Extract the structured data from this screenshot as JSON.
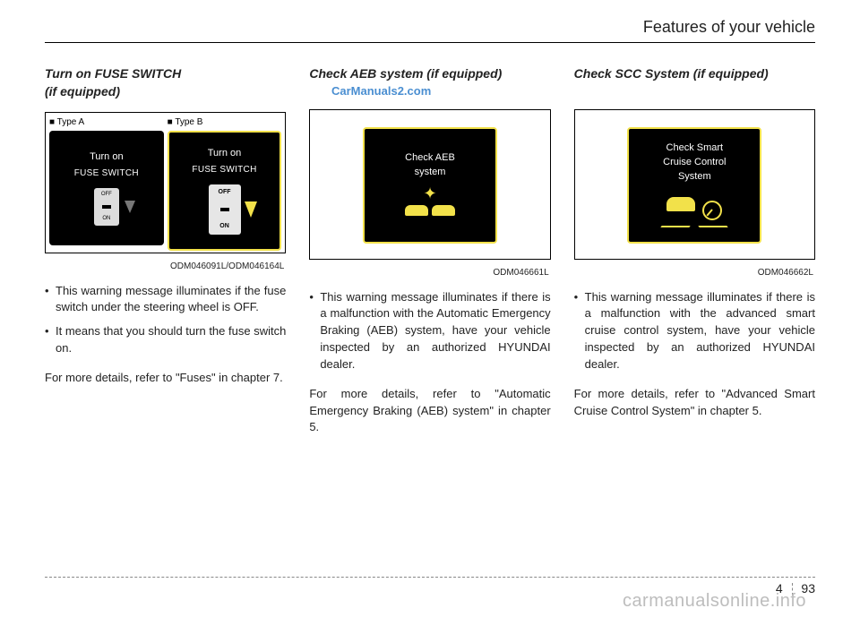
{
  "header": {
    "title": "Features of your vehicle"
  },
  "watermark": {
    "link": "CarManuals2.com",
    "footer": "carmanualsonline.info"
  },
  "col1": {
    "title_l1": "Turn on FUSE SWITCH",
    "title_l2": "(if equipped)",
    "type_a": "Type A",
    "type_b": "Type B",
    "screen_a_l1": "Turn on",
    "screen_a_l2": "FUSE SWITCH",
    "switch_a_off": "OFF",
    "switch_a_on": "ON",
    "screen_b_l1": "Turn on",
    "screen_b_l2": "FUSE SWITCH",
    "switch_b_off": "OFF",
    "switch_b_on": "ON",
    "code": "ODM046091L/ODM046164L",
    "bullets": [
      "This warning message illuminates if the fuse switch under the steering wheel is OFF.",
      "It means that you should turn the fuse switch on."
    ],
    "para": "For more details, refer to \"Fuses\" in chapter 7."
  },
  "col2": {
    "title": "Check AEB system (if equipped)",
    "screen_l1": "Check AEB",
    "screen_l2": "system",
    "code": "ODM046661L",
    "bullets": [
      "This warning message illuminates if there is a malfunction with the Automatic Emergency Braking (AEB) system, have your vehicle inspected by an authorized HYUNDAI dealer."
    ],
    "para": "For more details, refer to \"Automatic Emergency Braking (AEB) system\" in chapter 5."
  },
  "col3": {
    "title": "Check SCC System (if equipped)",
    "screen_l1": "Check Smart",
    "screen_l2": "Cruise Control",
    "screen_l3": "System",
    "code": "ODM046662L",
    "bullets": [
      "This warning message illuminates if there is a malfunction with the advanced smart cruise control system, have your vehicle inspected by an authorized HYUNDAI dealer."
    ],
    "para": "For more details, refer to \"Advanced Smart Cruise Control System\" in chapter 5."
  },
  "footer": {
    "chap": "4",
    "page": "93"
  },
  "colors": {
    "accent": "#f2e14a",
    "screen_bg": "#000000",
    "link": "#2b7bc9",
    "wm": "#bdbdbd"
  }
}
